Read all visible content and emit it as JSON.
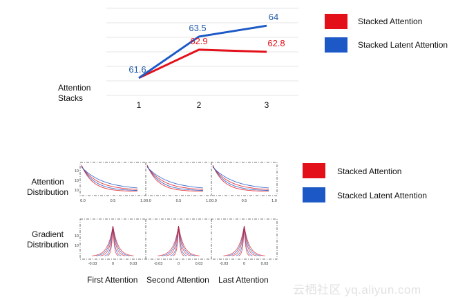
{
  "colors": {
    "red": "#e3101a",
    "blue": "#1c59c6",
    "grid": "#e6e6e6",
    "red_label": "#e3101a",
    "blue_label": "#1f5aa8"
  },
  "chart_data": [
    {
      "type": "line",
      "title": "",
      "xlabel": "",
      "ylabel": "Attention Stacks",
      "ylabel_lines": [
        "Attention",
        "Stacks"
      ],
      "categories": [
        "1",
        "2",
        "3"
      ],
      "ylim": [
        60.8,
        64.8
      ],
      "grid": true,
      "legend_position": "top-right",
      "series": [
        {
          "name": "Stacked Attention",
          "color": "#e3101a",
          "values": [
            61.6,
            62.9,
            62.8
          ],
          "labels": [
            "",
            "62.9",
            "62.8"
          ]
        },
        {
          "name": "Stacked Latent Attention",
          "color": "#1c59c6",
          "values": [
            61.6,
            63.5,
            64
          ],
          "labels": [
            "61.6",
            "63.5",
            "64"
          ]
        }
      ]
    },
    {
      "type": "line",
      "title": "",
      "column_labels": [
        "First Attention",
        "Second Attention",
        "Last Attention"
      ],
      "row_labels": [
        {
          "lines": [
            "Attention",
            "Distribution"
          ]
        },
        {
          "lines": [
            "Gradient",
            "Distribution"
          ]
        }
      ],
      "legend_position": "right",
      "series": [
        {
          "name": "Stacked Attention",
          "color": "#e3101a"
        },
        {
          "name": "Stacked Latent Attention",
          "color": "#1c59c6"
        }
      ],
      "attention_panels": {
        "x_ticks": [
          "0.0",
          "0.5",
          "1.0"
        ],
        "y_ticks": [
          "10",
          "10",
          "10"
        ]
      },
      "gradient_panels": {
        "x_ticks": [
          "-0.03",
          "0",
          "0.03"
        ],
        "y_ticks": [
          "10",
          "10"
        ]
      }
    }
  ],
  "legends": {
    "top": [
      {
        "label": "Stacked Attention"
      },
      {
        "label": "Stacked Latent Attention"
      }
    ],
    "bottom": [
      {
        "label": "Stacked Attention"
      },
      {
        "label": "Stacked Latent Attention"
      }
    ]
  },
  "watermark": "云栖社区 yq.aliyun.com"
}
